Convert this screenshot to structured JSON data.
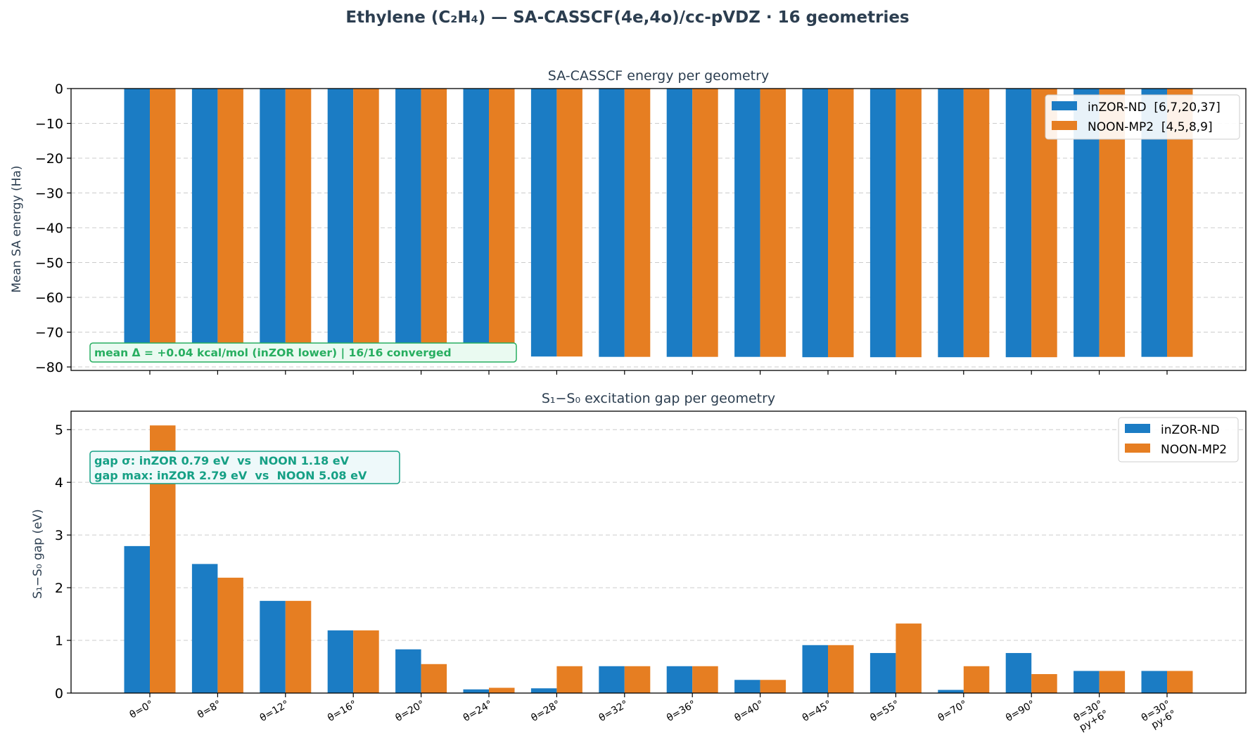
{
  "figure": {
    "title": "Ethylene (C₂H₄) — SA-CASSCF(4e,4o)/cc-pVDZ · 16 geometries",
    "colors": {
      "inzor": "#1b7cc4",
      "noon": "#e67e22",
      "grid": "#cccccc",
      "text": "#2c3e50",
      "green": "#27ae60",
      "teal": "#16a085"
    }
  },
  "chart_data": [
    {
      "type": "bar",
      "title": "SA-CASSCF energy per geometry",
      "xlabel": "",
      "ylabel": "Mean SA energy (Ha)",
      "ylim": [
        -81,
        0
      ],
      "yticks": [
        "0",
        "−10",
        "−20",
        "−30",
        "−40",
        "−50",
        "−60",
        "−70",
        "−80"
      ],
      "ytick_values": [
        0,
        -10,
        -20,
        -30,
        -40,
        -50,
        -60,
        -70,
        -80
      ],
      "grid": true,
      "legend_position": "upper-right",
      "categories": [
        "θ=0°",
        "θ=8°",
        "θ=12°",
        "θ=16°",
        "θ=20°",
        "θ=24°",
        "θ=28°",
        "θ=32°",
        "θ=36°",
        "θ=40°",
        "θ=45°",
        "θ=55°",
        "θ=70°",
        "θ=90°",
        "θ=30° py+6°",
        "θ=30° py-6°"
      ],
      "series": [
        {
          "name": "inZOR-ND  [6,7,20,37]",
          "color": "#1b7cc4",
          "values": [
            -78.0,
            -78.0,
            -78.0,
            -78.0,
            -78.0,
            -78.0,
            -77.0,
            -77.1,
            -77.1,
            -77.1,
            -77.2,
            -77.2,
            -77.2,
            -77.2,
            -77.1,
            -77.1
          ]
        },
        {
          "name": "NOON-MP2  [4,5,8,9]",
          "color": "#e67e22",
          "values": [
            -78.0,
            -78.0,
            -78.0,
            -78.0,
            -78.0,
            -78.0,
            -77.0,
            -77.1,
            -77.1,
            -77.1,
            -77.2,
            -77.2,
            -77.2,
            -77.2,
            -77.1,
            -77.1
          ]
        }
      ],
      "annotations": [
        "mean Δ = +0.04 kcal/mol (inZOR lower)  |  16/16 converged"
      ]
    },
    {
      "type": "bar",
      "title": "S₁−S₀ excitation gap per geometry",
      "xlabel": "",
      "ylabel": "S₁−S₀ gap (eV)",
      "ylim": [
        0,
        5.35
      ],
      "yticks": [
        "0",
        "1",
        "2",
        "3",
        "4",
        "5"
      ],
      "ytick_values": [
        0,
        1,
        2,
        3,
        4,
        5
      ],
      "grid": true,
      "legend_position": "upper-right",
      "categories": [
        "θ=0°",
        "θ=8°",
        "θ=12°",
        "θ=16°",
        "θ=20°",
        "θ=24°",
        "θ=28°",
        "θ=32°",
        "θ=36°",
        "θ=40°",
        "θ=45°",
        "θ=55°",
        "θ=70°",
        "θ=90°",
        "θ=30°\npy+6°",
        "θ=30°\npy-6°"
      ],
      "series": [
        {
          "name": "inZOR-ND",
          "color": "#1b7cc4",
          "values": [
            2.79,
            2.45,
            1.75,
            1.19,
            0.83,
            0.07,
            0.09,
            0.51,
            0.51,
            0.25,
            0.91,
            0.76,
            0.06,
            0.76,
            0.42,
            0.42
          ]
        },
        {
          "name": "NOON-MP2",
          "color": "#e67e22",
          "values": [
            5.08,
            2.19,
            1.75,
            1.19,
            0.55,
            0.1,
            0.51,
            0.51,
            0.51,
            0.25,
            0.91,
            1.32,
            0.51,
            0.36,
            0.42,
            0.42
          ]
        }
      ],
      "annotations": [
        "gap σ: inZOR 0.79 eV  vs  NOON 1.18 eV",
        "gap max: inZOR 2.79 eV  vs  NOON 5.08 eV"
      ]
    }
  ]
}
